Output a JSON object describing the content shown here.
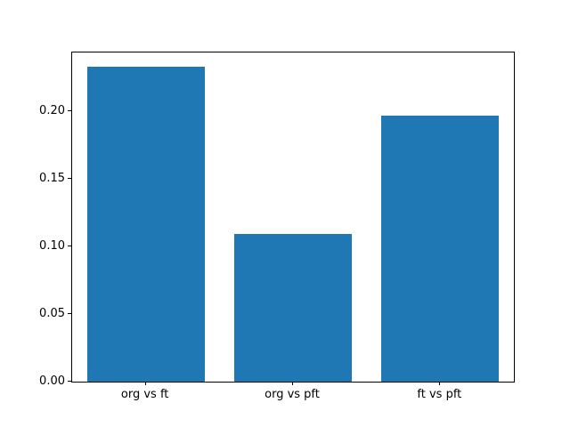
{
  "chart_data": {
    "type": "bar",
    "title": "",
    "xlabel": "",
    "ylabel": "",
    "categories": [
      "org vs ft",
      "org vs pft",
      "ft vs pft"
    ],
    "values": [
      0.233,
      0.109,
      0.197
    ],
    "ylim": [
      0,
      0.2435
    ],
    "yticks": [
      0,
      0.05,
      0.1,
      0.15,
      0.2
    ],
    "ytick_labels": [
      "0.00",
      "0.05",
      "0.10",
      "0.15",
      "0.20"
    ],
    "bar_width_fraction": 0.8,
    "bar_color": "#1f77b4",
    "spine_color": "#000000",
    "background_color": "#ffffff",
    "grid": false,
    "legend": "none"
  }
}
